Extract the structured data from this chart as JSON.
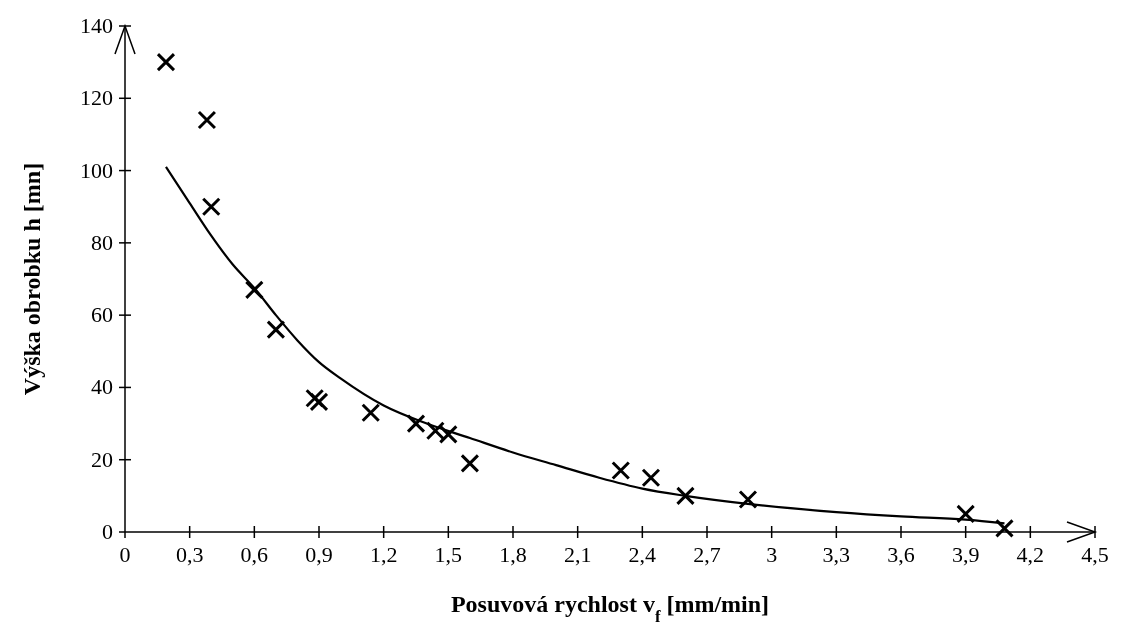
{
  "chart_data": {
    "type": "scatter",
    "xlabel": "Posuvová rychlost v$_{f}$ [mm/min]",
    "ylabel": "Výška obrobku h [mn]",
    "xlim": [
      0,
      4.5
    ],
    "ylim": [
      0,
      140
    ],
    "xticks": [
      0,
      {
        "value": 0.3,
        "label": "0,3"
      },
      {
        "value": 0.6,
        "label": "0,6"
      },
      {
        "value": 0.9,
        "label": "0,9"
      },
      {
        "value": 1.2,
        "label": "1,2"
      },
      {
        "value": 1.5,
        "label": "1,5"
      },
      {
        "value": 1.8,
        "label": "1,8"
      },
      {
        "value": 2.1,
        "label": "2,1"
      },
      {
        "value": 2.4,
        "label": "2,4"
      },
      {
        "value": 2.7,
        "label": "2,7"
      },
      3,
      {
        "value": 3.3,
        "label": "3,3"
      },
      {
        "value": 3.6,
        "label": "3,6"
      },
      {
        "value": 3.9,
        "label": "3,9"
      },
      {
        "value": 4.2,
        "label": "4,2"
      },
      {
        "value": 4.5,
        "label": "4,5"
      }
    ],
    "yticks": [
      0,
      20,
      40,
      60,
      80,
      100,
      120,
      140
    ],
    "grid": false,
    "series": [
      {
        "color": "#000000",
        "marker": "cross",
        "x": [
          0.19,
          0.38,
          0.4,
          0.6,
          0.7,
          0.88,
          0.9,
          1.14,
          1.35,
          1.44,
          1.5,
          1.6,
          2.3,
          2.44,
          2.6,
          2.89,
          3.9,
          4.08
        ],
        "values": [
          130,
          114,
          90,
          67,
          56,
          37,
          36,
          33,
          30,
          28,
          27,
          19,
          17,
          15,
          10,
          9,
          5,
          1
        ]
      },
      {
        "type": "line",
        "color": "#000000",
        "marker": "none",
        "line_style": "solid",
        "x": [
          0.19,
          0.3,
          0.4,
          0.5,
          0.6,
          0.7,
          0.8,
          0.9,
          1.0,
          1.2,
          1.4,
          1.6,
          1.8,
          2.0,
          2.2,
          2.4,
          2.6,
          2.9,
          3.3,
          3.6,
          3.9,
          4.08
        ],
        "values": [
          101,
          91,
          82,
          74,
          67.5,
          60,
          53,
          47,
          42.5,
          35,
          30,
          26,
          22,
          18.5,
          15,
          12,
          10,
          7.7,
          5.5,
          4.3,
          3.4,
          2.4
        ]
      }
    ]
  }
}
